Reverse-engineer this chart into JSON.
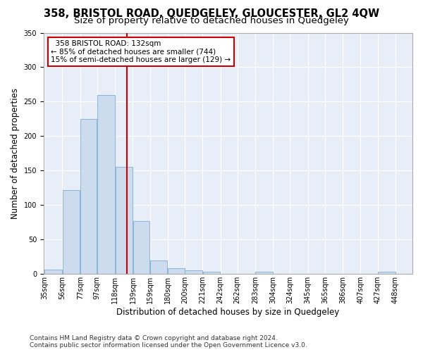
{
  "title": "358, BRISTOL ROAD, QUEDGELEY, GLOUCESTER, GL2 4QW",
  "subtitle": "Size of property relative to detached houses in Quedgeley",
  "xlabel": "Distribution of detached houses by size in Quedgeley",
  "ylabel": "Number of detached properties",
  "bar_color": "#ccdcee",
  "bar_edge_color": "#7aadd4",
  "background_color": "#e8eef8",
  "grid_color": "#ffffff",
  "vline_x": 132,
  "vline_color": "#cc0000",
  "bin_edges": [
    35,
    56,
    77,
    97,
    118,
    139,
    159,
    180,
    200,
    221,
    242,
    262,
    283,
    304,
    324,
    345,
    365,
    386,
    407,
    427,
    448
  ],
  "bin_labels": [
    "35sqm",
    "56sqm",
    "77sqm",
    "97sqm",
    "118sqm",
    "139sqm",
    "159sqm",
    "180sqm",
    "200sqm",
    "221sqm",
    "242sqm",
    "262sqm",
    "283sqm",
    "304sqm",
    "324sqm",
    "345sqm",
    "365sqm",
    "386sqm",
    "407sqm",
    "427sqm",
    "448sqm"
  ],
  "bar_heights": [
    6,
    122,
    225,
    260,
    155,
    77,
    20,
    8,
    5,
    3,
    0,
    0,
    3,
    0,
    0,
    0,
    0,
    0,
    0,
    3,
    0
  ],
  "annotation_line1": "  358 BRISTOL ROAD: 132sqm",
  "annotation_line2": "← 85% of detached houses are smaller (744)",
  "annotation_line3": "15% of semi-detached houses are larger (129) →",
  "annotation_box_edge_color": "#cc0000",
  "ylim": [
    0,
    350
  ],
  "yticks": [
    0,
    50,
    100,
    150,
    200,
    250,
    300,
    350
  ],
  "footer_text": "Contains HM Land Registry data © Crown copyright and database right 2024.\nContains public sector information licensed under the Open Government Licence v3.0.",
  "title_fontsize": 10.5,
  "subtitle_fontsize": 9.5,
  "xlabel_fontsize": 8.5,
  "ylabel_fontsize": 8.5,
  "tick_fontsize": 7,
  "footer_fontsize": 6.5,
  "fig_bg": "#ffffff"
}
